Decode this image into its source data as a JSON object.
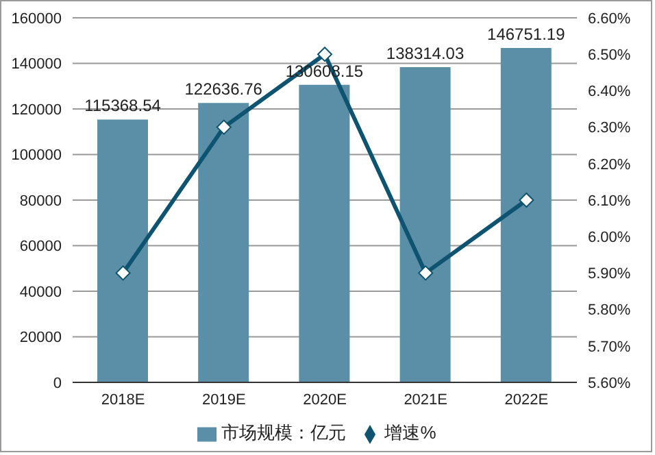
{
  "chart_data": {
    "type": "bar",
    "categories": [
      "2018E",
      "2019E",
      "2020E",
      "2021E",
      "2022E"
    ],
    "series": [
      {
        "name": "市场规模：亿元",
        "color": "#5b8fa8",
        "values": [
          115368.54,
          122636.76,
          130608.15,
          138314.03,
          146751.19
        ],
        "value_labels": [
          "115368.54",
          "122636.76",
          "130608.15",
          "138314.03",
          "146751.19"
        ]
      },
      {
        "name": "增速%",
        "type": "line",
        "axis": "y2",
        "color": "#0e5470",
        "marker": "diamond",
        "values": [
          5.9,
          6.3,
          6.5,
          5.9,
          6.1
        ]
      }
    ],
    "ylim": [
      0,
      160000
    ],
    "yticks": [
      0,
      20000,
      40000,
      60000,
      80000,
      100000,
      120000,
      140000,
      160000
    ],
    "y2lim": [
      5.6,
      6.6
    ],
    "y2ticks": [
      {
        "value": 5.6,
        "label": "5.60%"
      },
      {
        "value": 5.7,
        "label": "5.70%"
      },
      {
        "value": 5.8,
        "label": "5.80%"
      },
      {
        "value": 5.9,
        "label": "5.90%"
      },
      {
        "value": 6.0,
        "label": "6.00%"
      },
      {
        "value": 6.1,
        "label": "6.10%"
      },
      {
        "value": 6.2,
        "label": "6.20%"
      },
      {
        "value": 6.3,
        "label": "6.30%"
      },
      {
        "value": 6.4,
        "label": "6.40%"
      },
      {
        "value": 6.5,
        "label": "6.50%"
      },
      {
        "value": 6.6,
        "label": "6.60%"
      }
    ],
    "grid": "y",
    "legend": "bottom"
  }
}
